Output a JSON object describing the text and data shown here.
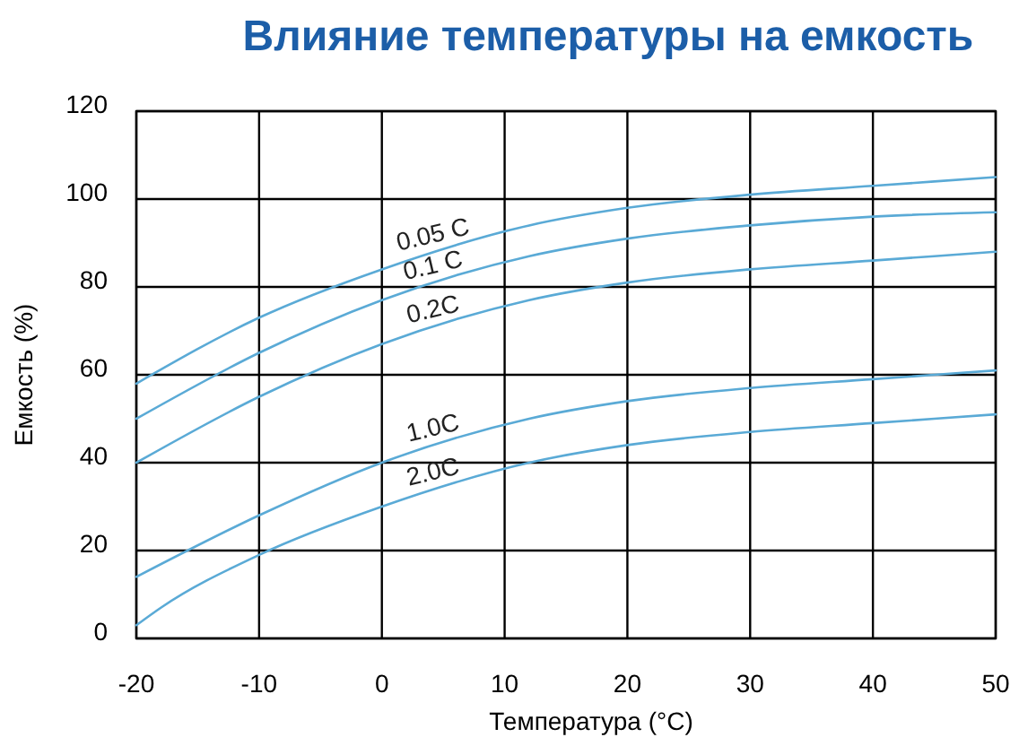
{
  "chart_data": {
    "type": "line",
    "title": "Влияние температуры на емкость",
    "xlabel": "Температура (°C)",
    "ylabel": "Емкость (%)",
    "x": [
      -20,
      -10,
      0,
      12,
      20,
      30,
      40,
      50
    ],
    "series": [
      {
        "name": "0.05 C",
        "color": "#5aaad6",
        "values": [
          58,
          73,
          84,
          94,
          98,
          101,
          103,
          105
        ]
      },
      {
        "name": "0.1 C",
        "color": "#5aaad6",
        "values": [
          50,
          65,
          77,
          87,
          91,
          94,
          96,
          97
        ]
      },
      {
        "name": "0.2C",
        "color": "#5aaad6",
        "values": [
          40,
          55,
          67,
          77,
          81,
          84,
          86,
          88
        ]
      },
      {
        "name": "1.0C",
        "color": "#5aaad6",
        "values": [
          14,
          28,
          40,
          50,
          54,
          57,
          59,
          61
        ]
      },
      {
        "name": "2.0C",
        "color": "#5aaad6",
        "x": [
          -20,
          -18,
          -10,
          0,
          12,
          20,
          30,
          40,
          50
        ],
        "values": [
          3,
          7,
          19,
          30,
          40,
          44,
          47,
          49,
          51
        ]
      }
    ],
    "xlim": [
      -20,
      50
    ],
    "ylim": [
      0,
      120
    ],
    "xticks": [
      -20,
      -10,
      0,
      10,
      20,
      30,
      40,
      50
    ],
    "yticks": [
      0,
      20,
      40,
      60,
      80,
      100,
      120
    ],
    "grid": true,
    "line_style": "solid"
  }
}
